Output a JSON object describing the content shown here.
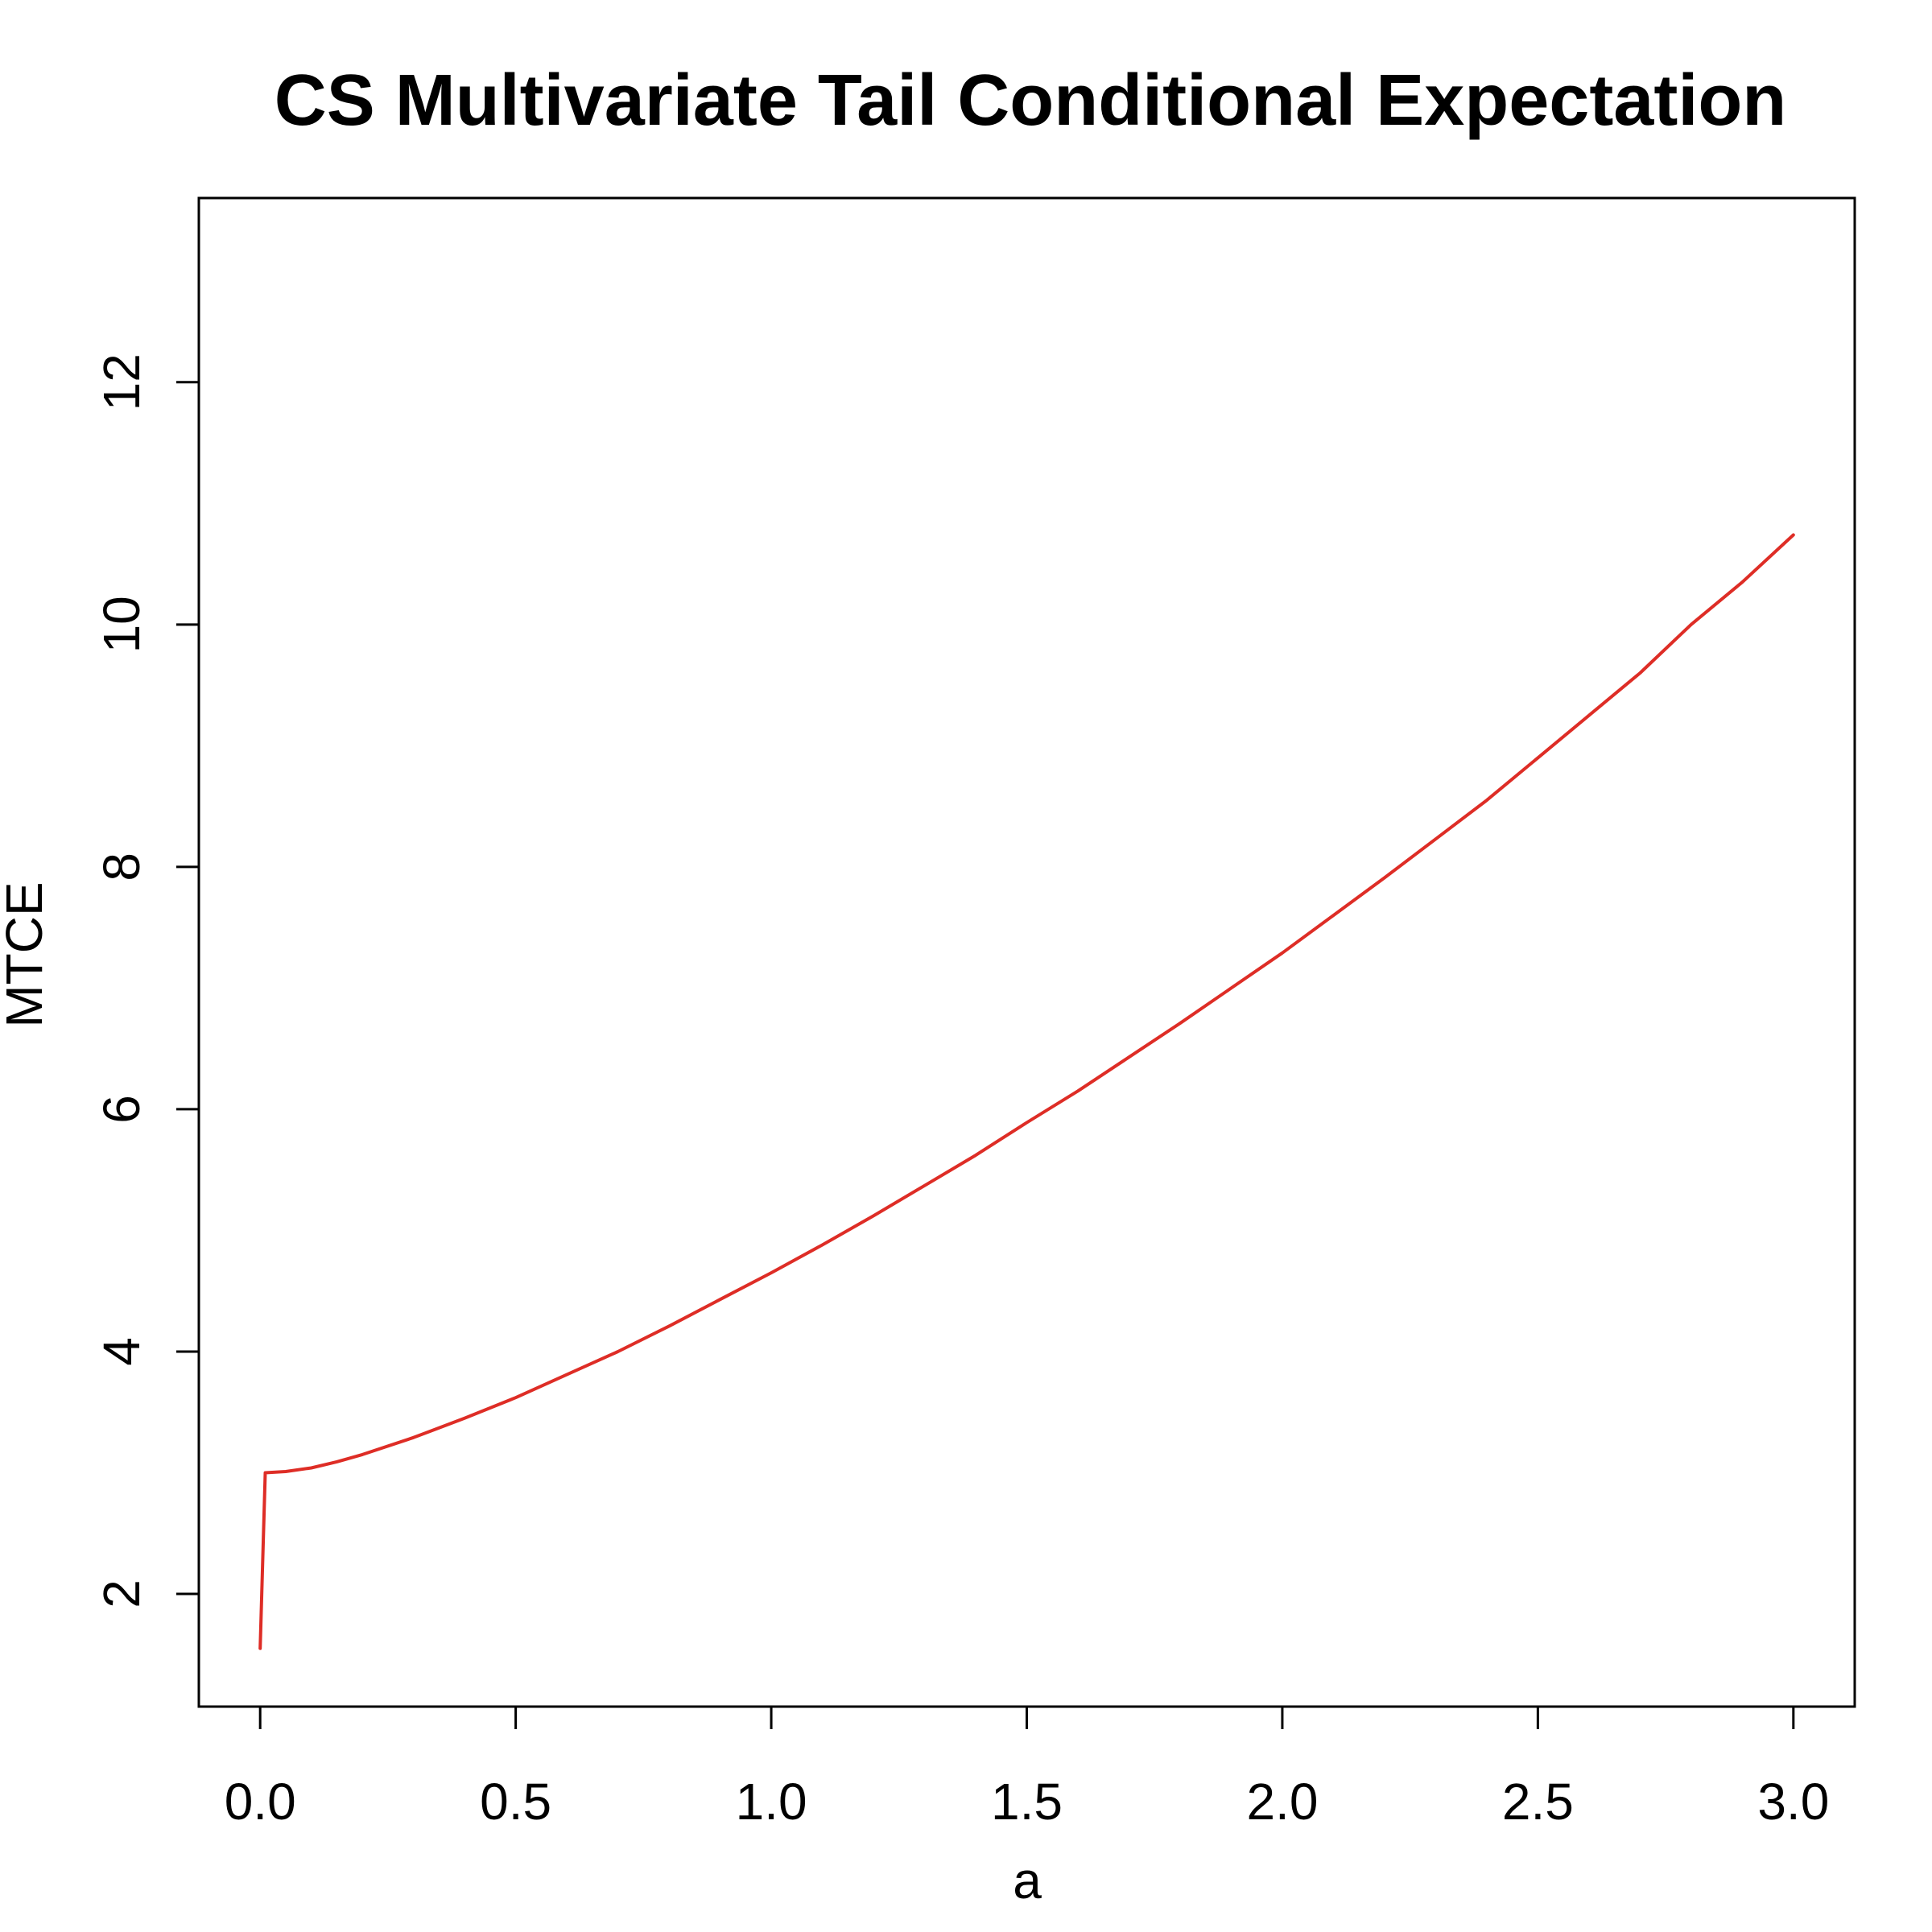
{
  "chart_data": {
    "type": "line",
    "title": "CS Multivariate Tail Conditional Expectation",
    "xlabel": "a",
    "ylabel": "MTCE",
    "xlim": [
      -0.12,
      3.12
    ],
    "ylim": [
      1.07,
      13.52
    ],
    "x_ticks": [
      "0.0",
      "0.5",
      "1.0",
      "1.5",
      "2.0",
      "2.5",
      "3.0"
    ],
    "y_ticks": [
      "2",
      "4",
      "6",
      "8",
      "10",
      "12"
    ],
    "grid": false,
    "legend": "none",
    "colors": {
      "line": "#de2d26",
      "axis": "#000000"
    },
    "series": [
      {
        "x": [
          0.0,
          0.01,
          0.05,
          0.1,
          0.15,
          0.2,
          0.3,
          0.4,
          0.5,
          0.6,
          0.7,
          0.8,
          0.9,
          1.0,
          1.1,
          1.2,
          1.3,
          1.4,
          1.5,
          1.6,
          1.7,
          1.8,
          1.9,
          2.0,
          2.1,
          2.2,
          2.3,
          2.4,
          2.5,
          2.6,
          2.7,
          2.8,
          2.9,
          3.0
        ],
        "values": [
          1.55,
          3.0,
          3.01,
          3.04,
          3.09,
          3.15,
          3.29,
          3.45,
          3.62,
          3.81,
          4.0,
          4.21,
          4.43,
          4.65,
          4.88,
          5.12,
          5.37,
          5.62,
          5.89,
          6.15,
          6.43,
          6.71,
          7.0,
          7.29,
          7.6,
          7.91,
          8.23,
          8.55,
          8.9,
          9.25,
          9.6,
          10.0,
          10.35,
          10.74
        ]
      }
    ]
  }
}
